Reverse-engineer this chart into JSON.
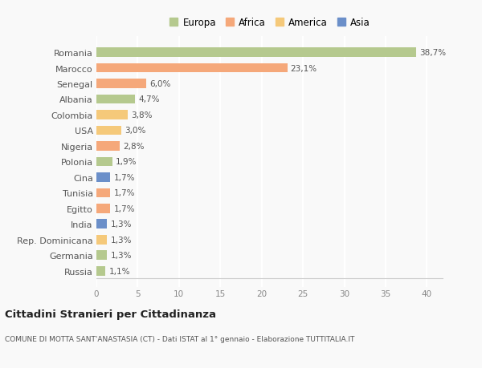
{
  "countries": [
    "Russia",
    "Germania",
    "Rep. Dominicana",
    "India",
    "Egitto",
    "Tunisia",
    "Cina",
    "Polonia",
    "Nigeria",
    "USA",
    "Colombia",
    "Albania",
    "Senegal",
    "Marocco",
    "Romania"
  ],
  "values": [
    1.1,
    1.3,
    1.3,
    1.3,
    1.7,
    1.7,
    1.7,
    1.9,
    2.8,
    3.0,
    3.8,
    4.7,
    6.0,
    23.1,
    38.7
  ],
  "labels": [
    "1,1%",
    "1,3%",
    "1,3%",
    "1,3%",
    "1,7%",
    "1,7%",
    "1,7%",
    "1,9%",
    "2,8%",
    "3,0%",
    "3,8%",
    "4,7%",
    "6,0%",
    "23,1%",
    "38,7%"
  ],
  "colors": [
    "#b5c98e",
    "#b5c98e",
    "#f5c97a",
    "#6b8fc9",
    "#f5a87a",
    "#f5a87a",
    "#6b8fc9",
    "#b5c98e",
    "#f5a87a",
    "#f5c97a",
    "#f5c97a",
    "#b5c98e",
    "#f5a87a",
    "#f5a87a",
    "#b5c98e"
  ],
  "legend_labels": [
    "Europa",
    "Africa",
    "America",
    "Asia"
  ],
  "legend_colors": [
    "#b5c98e",
    "#f5a87a",
    "#f5c97a",
    "#6b8fc9"
  ],
  "title": "Cittadini Stranieri per Cittadinanza",
  "subtitle": "COMUNE DI MOTTA SANT'ANASTASIA (CT) - Dati ISTAT al 1° gennaio - Elaborazione TUTTITALIA.IT",
  "xlim": [
    0,
    42
  ],
  "xticks": [
    0,
    5,
    10,
    15,
    20,
    25,
    30,
    35,
    40
  ],
  "background_color": "#f9f9f9",
  "grid_color": "#ffffff",
  "bar_height": 0.6
}
